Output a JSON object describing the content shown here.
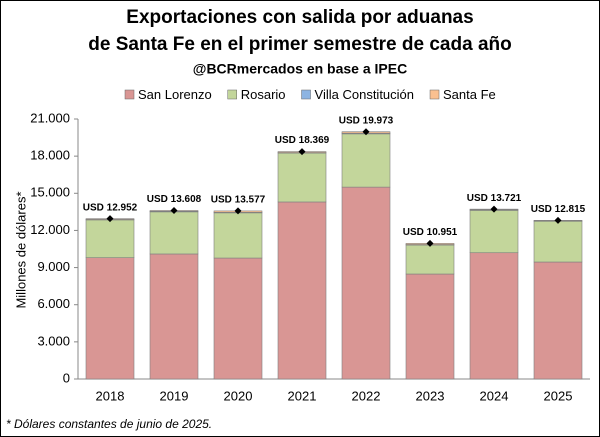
{
  "chart_data": {
    "type": "stacked_bar",
    "title": [
      "Exportaciones con salida por aduanas",
      "de Santa Fe en el primer semestre de cada año"
    ],
    "subtitle": "@BCRmercados en base a IPEC",
    "y_label": "Millones de dólares*",
    "footnote": "* Dólares constantes de junio de 2025.",
    "categories": [
      "2018",
      "2019",
      "2020",
      "2021",
      "2022",
      "2023",
      "2024",
      "2025"
    ],
    "series": [
      {
        "name": "San Lorenzo",
        "color": "#d99694",
        "values": [
          9800,
          10100,
          9770,
          14300,
          15500,
          8480,
          10200,
          9450
        ]
      },
      {
        "name": "Rosario",
        "color": "#c3d69b",
        "values": [
          3050,
          3400,
          3650,
          3950,
          4300,
          2340,
          3420,
          3290
        ]
      },
      {
        "name": "Villa Constitución",
        "color": "#8db4e2",
        "values": [
          40,
          50,
          40,
          40,
          60,
          40,
          50,
          40
        ]
      },
      {
        "name": "Santa Fe",
        "color": "#fac090",
        "values": [
          62,
          58,
          117,
          79,
          113,
          91,
          51,
          35
        ]
      }
    ],
    "totals": {
      "values": [
        12952,
        13608,
        13577,
        18369,
        19973,
        10951,
        13721,
        12815
      ],
      "value_labels": [
        "USD 12.952",
        "USD 13.608",
        "USD 13.577",
        "USD 18.369",
        "USD 19.973",
        "USD 10.951",
        "USD 13.721",
        "USD 12.815"
      ]
    },
    "ylim": [
      0,
      21000
    ],
    "yticks": [
      0,
      {
        "value": 3000,
        "label": "3.000"
      },
      {
        "value": 6000,
        "label": "6.000"
      },
      {
        "value": 9000,
        "label": "9.000"
      },
      {
        "value": 12000,
        "label": "12.000"
      },
      {
        "value": 15000,
        "label": "15.000"
      },
      {
        "value": 18000,
        "label": "18.000"
      },
      {
        "value": 21000,
        "label": "21.000"
      }
    ],
    "legend": "top"
  }
}
